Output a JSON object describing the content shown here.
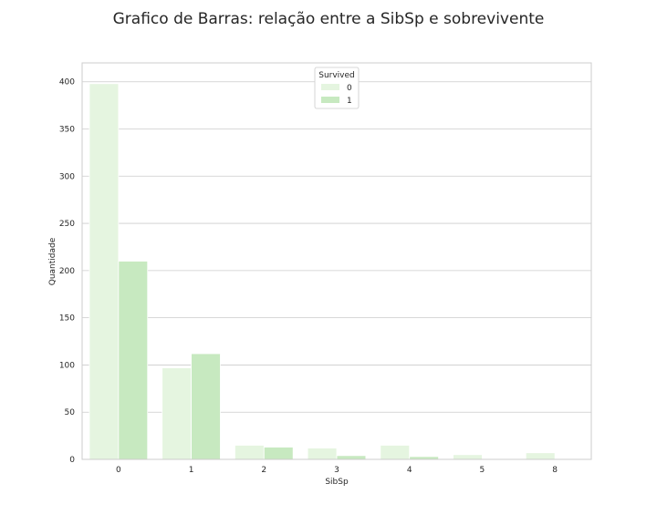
{
  "chart_data": {
    "type": "bar",
    "title": "Grafico de Barras: relação entre a SibSp e sobrevivente",
    "xlabel": "SibSp",
    "ylabel": "Quantidade",
    "categories": [
      "0",
      "1",
      "2",
      "3",
      "4",
      "5",
      "8"
    ],
    "series": [
      {
        "name": "0",
        "values": [
          398,
          97,
          15,
          12,
          15,
          5,
          7
        ],
        "color": "#e5f5e0"
      },
      {
        "name": "1",
        "values": [
          210,
          112,
          13,
          4,
          3,
          0,
          0
        ],
        "color": "#c7e9c0"
      }
    ],
    "ylim": [
      0,
      420
    ],
    "yticks": [
      0,
      50,
      100,
      150,
      200,
      250,
      300,
      350,
      400
    ],
    "legend": {
      "title": "Survived",
      "placement": "top-center"
    },
    "grid": true,
    "gridColor": "#cccccc",
    "frameColor": "#cccccc"
  }
}
